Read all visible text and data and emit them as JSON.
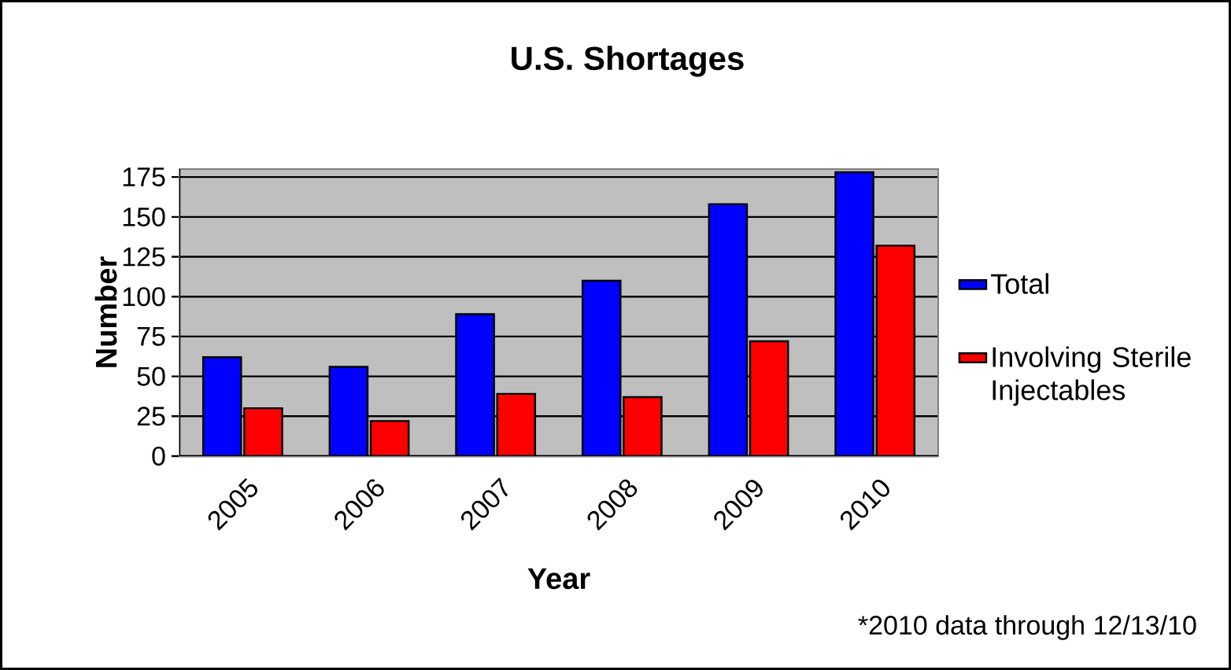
{
  "chart_data": {
    "type": "bar",
    "title": "U.S. Shortages",
    "xlabel": "Year",
    "ylabel": "Number",
    "categories": [
      "2005",
      "2006",
      "2007",
      "2008",
      "2009",
      "2010"
    ],
    "series": [
      {
        "name": "Total",
        "color": "#0000ff",
        "values": [
          62,
          56,
          89,
          110,
          158,
          178
        ]
      },
      {
        "name": "Involving Sterile Injectables",
        "color": "#ff0000",
        "values": [
          30,
          22,
          39,
          37,
          72,
          132
        ]
      }
    ],
    "ylim": [
      0,
      180
    ],
    "yticks": [
      0,
      25,
      50,
      75,
      100,
      125,
      150,
      175
    ],
    "grid": "y",
    "legend": "right",
    "annotations": [
      "*2010 data through 12/13/10"
    ]
  }
}
